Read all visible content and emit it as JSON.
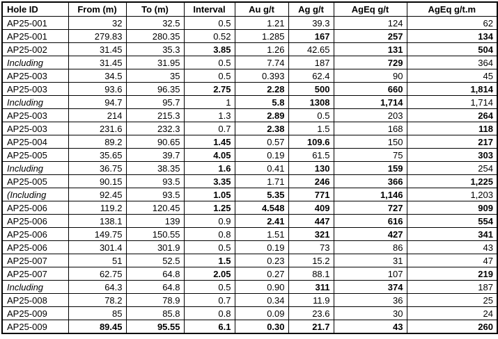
{
  "colors": {
    "grid_border": "#000000",
    "text": "#000000",
    "background": "#ffffff"
  },
  "table": {
    "columns": [
      "Hole ID",
      "From (m)",
      "To (m)",
      "Interval",
      "Au g/t",
      "Ag g/t",
      "AgEq g/t",
      "AgEq g/t.m"
    ],
    "rows": [
      {
        "cells": [
          {
            "v": "AP25-001"
          },
          {
            "v": "32"
          },
          {
            "v": "32.5"
          },
          {
            "v": "0.5"
          },
          {
            "v": "1.21"
          },
          {
            "v": "39.3"
          },
          {
            "v": "124"
          },
          {
            "v": "62"
          }
        ]
      },
      {
        "cells": [
          {
            "v": "AP25-001"
          },
          {
            "v": "279.83"
          },
          {
            "v": "280.35"
          },
          {
            "v": "0.52"
          },
          {
            "v": "1.285"
          },
          {
            "v": "167",
            "b": true
          },
          {
            "v": "257",
            "b": true
          },
          {
            "v": "134",
            "b": true
          }
        ]
      },
      {
        "cells": [
          {
            "v": "AP25-002"
          },
          {
            "v": "31.45"
          },
          {
            "v": "35.3"
          },
          {
            "v": "3.85",
            "b": true
          },
          {
            "v": "1.26"
          },
          {
            "v": "42.65"
          },
          {
            "v": "131",
            "b": true
          },
          {
            "v": "504",
            "b": true
          }
        ]
      },
      {
        "cells": [
          {
            "v": "Including",
            "i": true
          },
          {
            "v": "31.45"
          },
          {
            "v": "31.95"
          },
          {
            "v": "0.5"
          },
          {
            "v": "7.74"
          },
          {
            "v": "187"
          },
          {
            "v": "729",
            "b": true
          },
          {
            "v": "364"
          }
        ]
      },
      {
        "cells": [
          {
            "v": "AP25-003"
          },
          {
            "v": "34.5"
          },
          {
            "v": "35"
          },
          {
            "v": "0.5"
          },
          {
            "v": "0.393"
          },
          {
            "v": "62.4"
          },
          {
            "v": "90"
          },
          {
            "v": "45"
          }
        ]
      },
      {
        "cells": [
          {
            "v": "AP25-003"
          },
          {
            "v": "93.6"
          },
          {
            "v": "96.35"
          },
          {
            "v": "2.75",
            "b": true
          },
          {
            "v": "2.28",
            "b": true
          },
          {
            "v": "500",
            "b": true
          },
          {
            "v": "660",
            "b": true
          },
          {
            "v": "1,814",
            "b": true
          }
        ]
      },
      {
        "cells": [
          {
            "v": "Including",
            "i": true
          },
          {
            "v": "94.7"
          },
          {
            "v": "95.7"
          },
          {
            "v": "1"
          },
          {
            "v": "5.8",
            "b": true
          },
          {
            "v": "1308",
            "b": true
          },
          {
            "v": "1,714",
            "b": true
          },
          {
            "v": "1,714"
          }
        ]
      },
      {
        "cells": [
          {
            "v": "AP25-003"
          },
          {
            "v": "214"
          },
          {
            "v": "215.3"
          },
          {
            "v": "1.3"
          },
          {
            "v": "2.89",
            "b": true
          },
          {
            "v": "0.5"
          },
          {
            "v": "203"
          },
          {
            "v": "264",
            "b": true
          }
        ]
      },
      {
        "cells": [
          {
            "v": "AP25-003"
          },
          {
            "v": "231.6"
          },
          {
            "v": "232.3"
          },
          {
            "v": "0.7"
          },
          {
            "v": "2.38",
            "b": true
          },
          {
            "v": "1.5"
          },
          {
            "v": "168"
          },
          {
            "v": "118",
            "b": true
          }
        ]
      },
      {
        "cells": [
          {
            "v": "AP25-004"
          },
          {
            "v": "89.2"
          },
          {
            "v": "90.65"
          },
          {
            "v": "1.45",
            "b": true
          },
          {
            "v": "0.57"
          },
          {
            "v": "109.6",
            "b": true
          },
          {
            "v": "150"
          },
          {
            "v": "217",
            "b": true
          }
        ]
      },
      {
        "cells": [
          {
            "v": "AP25-005"
          },
          {
            "v": "35.65"
          },
          {
            "v": "39.7"
          },
          {
            "v": "4.05",
            "b": true
          },
          {
            "v": "0.19"
          },
          {
            "v": "61.5"
          },
          {
            "v": "75"
          },
          {
            "v": "303",
            "b": true
          }
        ]
      },
      {
        "cells": [
          {
            "v": "Including",
            "i": true
          },
          {
            "v": "36.75"
          },
          {
            "v": "38.35"
          },
          {
            "v": "1.6",
            "b": true
          },
          {
            "v": "0.41"
          },
          {
            "v": "130",
            "b": true
          },
          {
            "v": "159",
            "b": true
          },
          {
            "v": "254"
          }
        ]
      },
      {
        "cells": [
          {
            "v": "AP25-005"
          },
          {
            "v": "90.15"
          },
          {
            "v": "93.5"
          },
          {
            "v": "3.35",
            "b": true
          },
          {
            "v": "1.71"
          },
          {
            "v": "246",
            "b": true
          },
          {
            "v": "366",
            "b": true
          },
          {
            "v": "1,225",
            "b": true
          }
        ]
      },
      {
        "cells": [
          {
            "v": "(Including",
            "i": true
          },
          {
            "v": "92.45"
          },
          {
            "v": "93.5"
          },
          {
            "v": "1.05",
            "b": true
          },
          {
            "v": "5.35",
            "b": true
          },
          {
            "v": "771",
            "b": true
          },
          {
            "v": "1,146",
            "b": true
          },
          {
            "v": "1,203"
          }
        ]
      },
      {
        "cells": [
          {
            "v": "AP25-006"
          },
          {
            "v": "119.2"
          },
          {
            "v": "120.45"
          },
          {
            "v": "1.25",
            "b": true
          },
          {
            "v": "4.548",
            "b": true
          },
          {
            "v": "409",
            "b": true
          },
          {
            "v": "727",
            "b": true
          },
          {
            "v": "909",
            "b": true
          }
        ]
      },
      {
        "cells": [
          {
            "v": "AP25-006"
          },
          {
            "v": "138.1"
          },
          {
            "v": "139"
          },
          {
            "v": "0.9"
          },
          {
            "v": "2.41",
            "b": true
          },
          {
            "v": "447",
            "b": true
          },
          {
            "v": "616",
            "b": true
          },
          {
            "v": "554",
            "b": true
          }
        ]
      },
      {
        "cells": [
          {
            "v": "AP25-006"
          },
          {
            "v": "149.75"
          },
          {
            "v": "150.55"
          },
          {
            "v": "0.8"
          },
          {
            "v": "1.51"
          },
          {
            "v": "321",
            "b": true
          },
          {
            "v": "427",
            "b": true
          },
          {
            "v": "341",
            "b": true
          }
        ]
      },
      {
        "cells": [
          {
            "v": "AP25-006"
          },
          {
            "v": "301.4"
          },
          {
            "v": "301.9"
          },
          {
            "v": "0.5"
          },
          {
            "v": "0.19"
          },
          {
            "v": "73"
          },
          {
            "v": "86"
          },
          {
            "v": "43"
          }
        ]
      },
      {
        "cells": [
          {
            "v": "AP25-007"
          },
          {
            "v": "51"
          },
          {
            "v": "52.5"
          },
          {
            "v": "1.5",
            "b": true
          },
          {
            "v": "0.23"
          },
          {
            "v": "15.2"
          },
          {
            "v": "31"
          },
          {
            "v": "47"
          }
        ]
      },
      {
        "cells": [
          {
            "v": "AP25-007"
          },
          {
            "v": "62.75"
          },
          {
            "v": "64.8"
          },
          {
            "v": "2.05",
            "b": true
          },
          {
            "v": "0.27"
          },
          {
            "v": "88.1"
          },
          {
            "v": "107"
          },
          {
            "v": "219",
            "b": true
          }
        ]
      },
      {
        "cells": [
          {
            "v": "Including",
            "i": true
          },
          {
            "v": "64.3"
          },
          {
            "v": "64.8"
          },
          {
            "v": "0.5"
          },
          {
            "v": "0.90"
          },
          {
            "v": "311",
            "b": true
          },
          {
            "v": "374",
            "b": true
          },
          {
            "v": "187"
          }
        ]
      },
      {
        "cells": [
          {
            "v": "AP25-008"
          },
          {
            "v": "78.2"
          },
          {
            "v": "78.9"
          },
          {
            "v": "0.7"
          },
          {
            "v": "0.34"
          },
          {
            "v": "11.9"
          },
          {
            "v": "36"
          },
          {
            "v": "25"
          }
        ]
      },
      {
        "cells": [
          {
            "v": "AP25-009"
          },
          {
            "v": "85"
          },
          {
            "v": "85.8"
          },
          {
            "v": "0.8"
          },
          {
            "v": "0.09"
          },
          {
            "v": "23.6"
          },
          {
            "v": "30"
          },
          {
            "v": "24"
          }
        ]
      },
      {
        "cells": [
          {
            "v": "AP25-009"
          },
          {
            "v": "89.45",
            "b": true
          },
          {
            "v": "95.55",
            "b": true
          },
          {
            "v": "6.1",
            "b": true
          },
          {
            "v": "0.30",
            "b": true
          },
          {
            "v": "21.7",
            "b": true
          },
          {
            "v": "43",
            "b": true
          },
          {
            "v": "260",
            "b": true
          }
        ]
      }
    ]
  }
}
